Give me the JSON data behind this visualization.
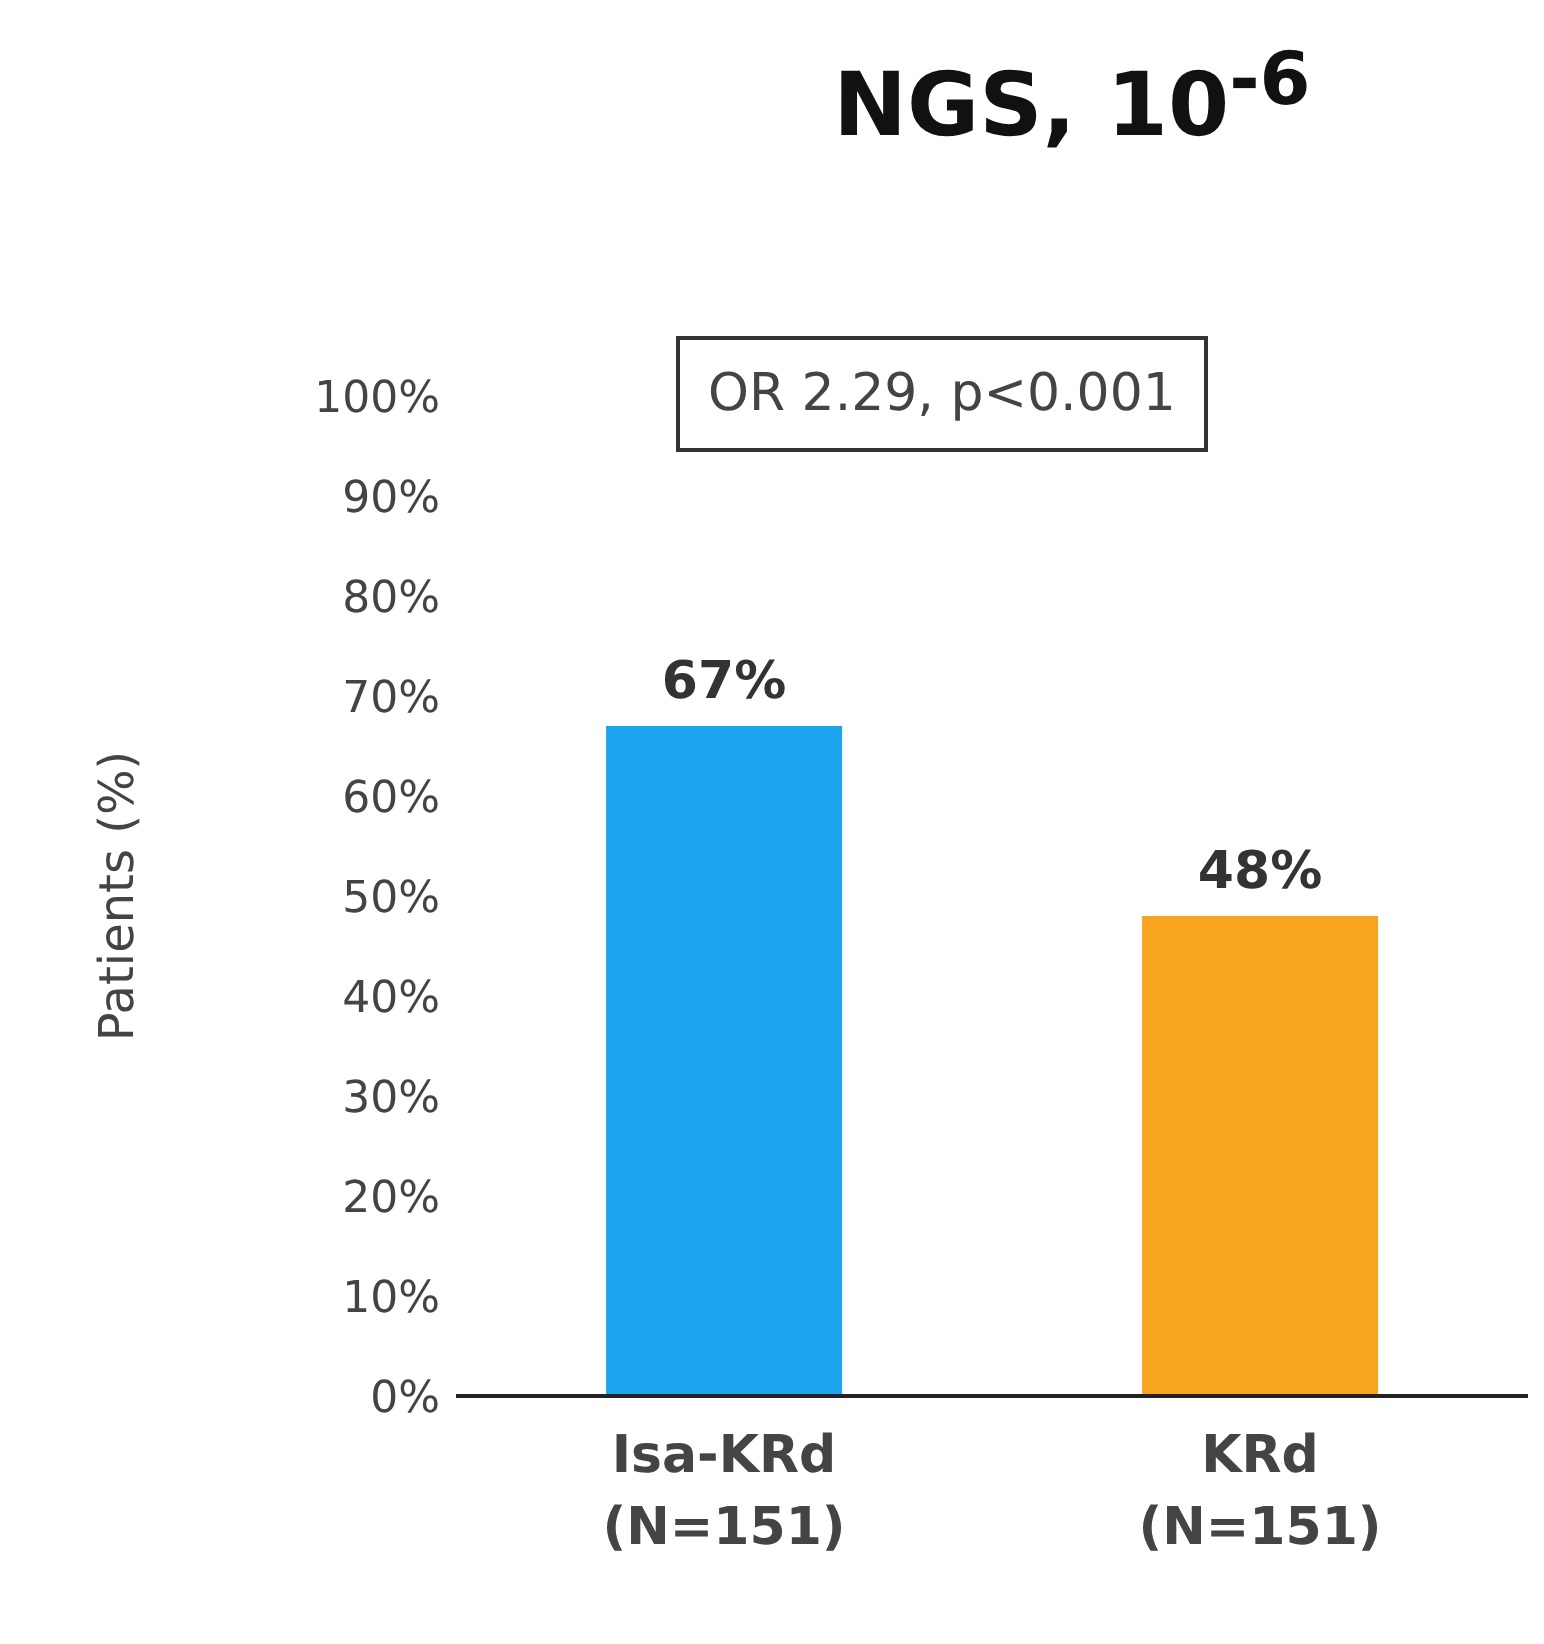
{
  "chart_data": {
    "type": "bar",
    "title": "NGS, 10$^{-6}$",
    "ylabel": "Patients (%)",
    "categories": [
      "Isa-KRd\n(N=151)",
      "KRd\n(N=151)"
    ],
    "values": [
      67,
      48
    ],
    "colors": [
      "#1ea5ef",
      "#f7a51e"
    ],
    "value_labels": [
      "67%",
      "48%"
    ],
    "ylim": [
      0,
      100
    ],
    "yticks": [
      {
        "value": 0,
        "label": "0%"
      },
      {
        "value": 10,
        "label": "10%"
      },
      {
        "value": 20,
        "label": "20%"
      },
      {
        "value": 30,
        "label": "30%"
      },
      {
        "value": 40,
        "label": "40%"
      },
      {
        "value": 50,
        "label": "50%"
      },
      {
        "value": 60,
        "label": "60%"
      },
      {
        "value": 70,
        "label": "70%"
      },
      {
        "value": 80,
        "label": "80%"
      },
      {
        "value": 90,
        "label": "90%"
      },
      {
        "value": 100,
        "label": "100%"
      }
    ],
    "annotations": [
      "OR 2.29, p<0.001"
    ],
    "grid": false,
    "legend": false
  }
}
